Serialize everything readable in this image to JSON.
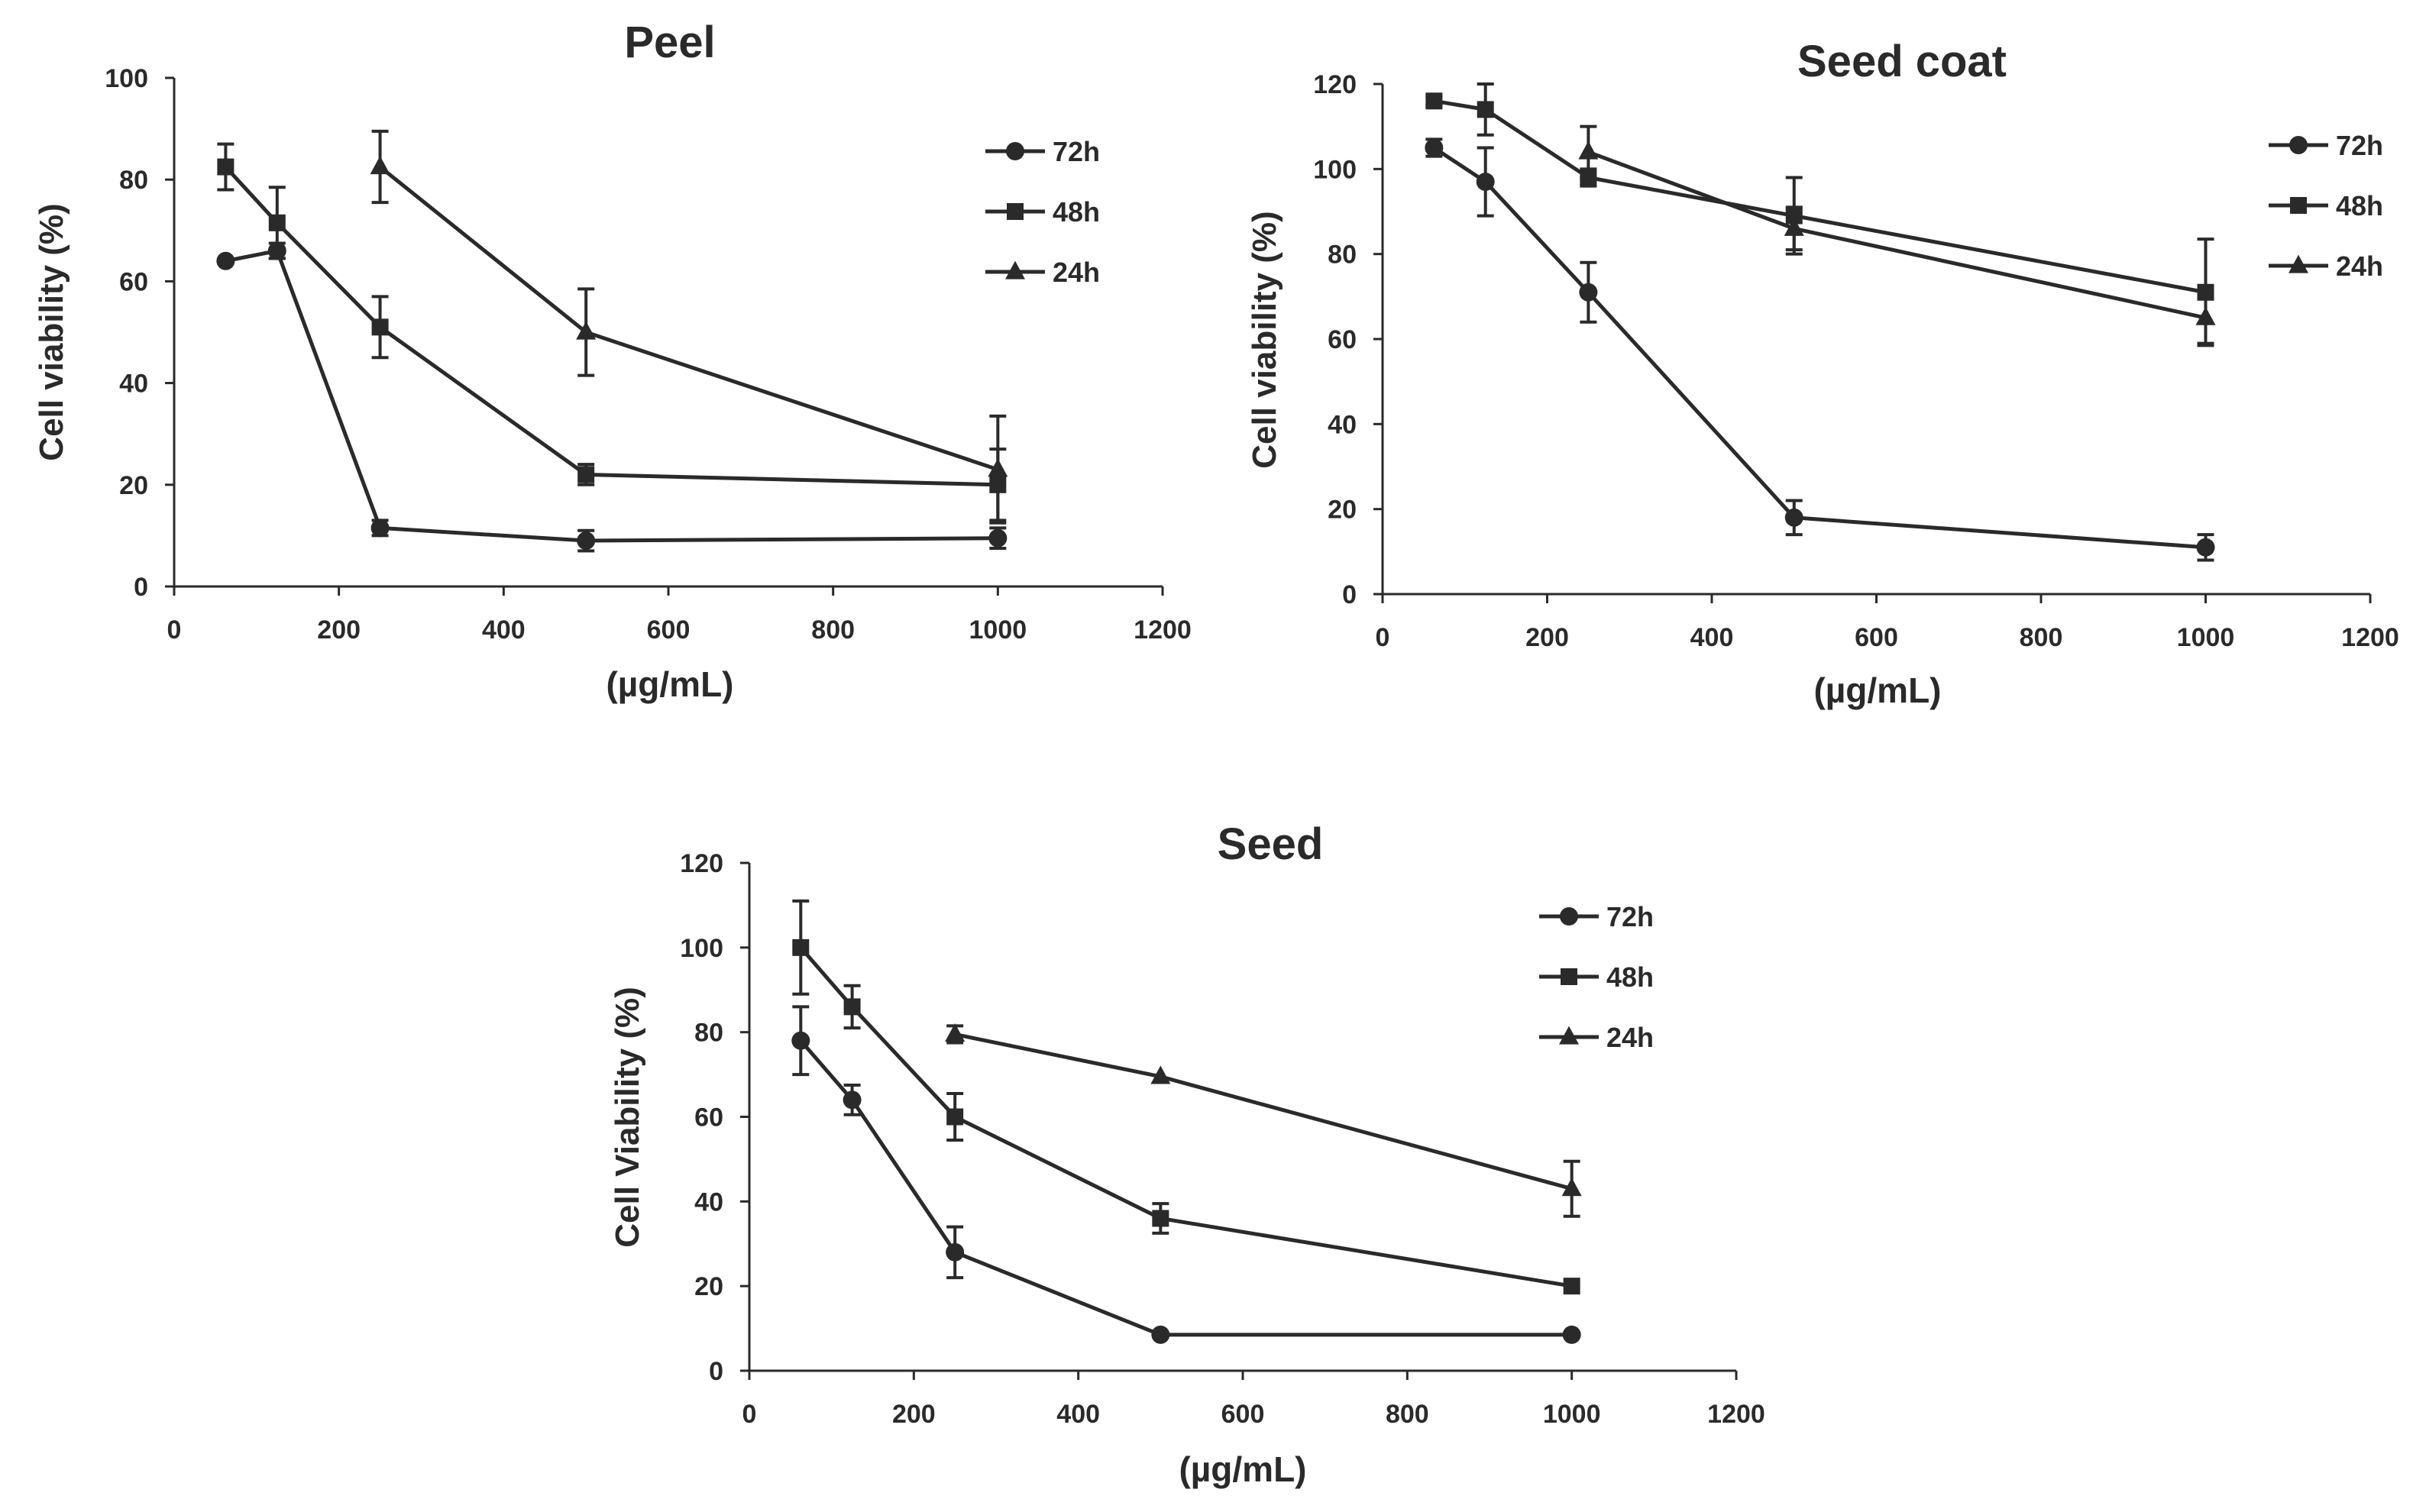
{
  "chart_data": [
    {
      "type": "line",
      "title": "Peel",
      "xlabel": "(µg/mL)",
      "ylabel": "Cell viability (%)",
      "xlim": [
        0,
        1200
      ],
      "ylim": [
        0,
        100
      ],
      "xticks": [
        "0",
        "200",
        "400",
        "600",
        "800",
        "1000",
        "1200"
      ],
      "yticks": [
        "0",
        "20",
        "40",
        "60",
        "80",
        "100"
      ],
      "legend": "top-right",
      "series": [
        {
          "name": "72h",
          "marker": "circle",
          "x": [
            62.5,
            125,
            250,
            500,
            1000
          ],
          "y": [
            64,
            66,
            11.5,
            9,
            9.5
          ],
          "err": [
            0,
            1.5,
            1.5,
            2,
            2
          ]
        },
        {
          "name": "48h",
          "marker": "square",
          "x": [
            62.5,
            125,
            250,
            500,
            1000
          ],
          "y": [
            82.5,
            71.5,
            51,
            22,
            20
          ],
          "err": [
            4.5,
            7,
            6,
            2,
            7
          ]
        },
        {
          "name": "24h",
          "marker": "triangle",
          "x": [
            250,
            500,
            1000
          ],
          "y": [
            82.5,
            50,
            23
          ],
          "err": [
            7,
            8.5,
            10.5
          ]
        }
      ]
    },
    {
      "type": "line",
      "title": "Seed coat",
      "xlabel": "(µg/mL)",
      "ylabel": "Cell viability (%)",
      "xlim": [
        0,
        1200
      ],
      "ylim": [
        0,
        120
      ],
      "xticks": [
        "0",
        "200",
        "400",
        "600",
        "800",
        "1000",
        "1200"
      ],
      "yticks": [
        "0",
        "20",
        "40",
        "60",
        "80",
        "100",
        "120"
      ],
      "legend": "top-right",
      "series": [
        {
          "name": "72h",
          "marker": "circle",
          "x": [
            62.5,
            125,
            250,
            500,
            1000
          ],
          "y": [
            105,
            97,
            71,
            18,
            11
          ],
          "err": [
            2,
            8,
            7,
            4,
            3
          ]
        },
        {
          "name": "48h",
          "marker": "square",
          "x": [
            62.5,
            125,
            250,
            500,
            1000
          ],
          "y": [
            116,
            114,
            98,
            89,
            71
          ],
          "err": [
            1,
            6,
            2,
            9,
            12.5
          ]
        },
        {
          "name": "24h",
          "marker": "triangle",
          "x": [
            250,
            500,
            1000
          ],
          "y": [
            104,
            86,
            65
          ],
          "err": [
            6,
            5,
            6
          ]
        }
      ]
    },
    {
      "type": "line",
      "title": "Seed",
      "xlabel": "(µg/mL)",
      "ylabel": "Cell Viability (%)",
      "xlim": [
        0,
        1200
      ],
      "ylim": [
        0,
        120
      ],
      "xticks": [
        "0",
        "200",
        "400",
        "600",
        "800",
        "1000",
        "1200"
      ],
      "yticks": [
        "0",
        "20",
        "40",
        "60",
        "80",
        "100",
        "120"
      ],
      "legend": "top-right",
      "series": [
        {
          "name": "72h",
          "marker": "circle",
          "x": [
            62.5,
            125,
            250,
            500,
            1000
          ],
          "y": [
            78,
            64,
            28,
            8.5,
            8.5
          ],
          "err": [
            8,
            3.5,
            6,
            0,
            0
          ]
        },
        {
          "name": "48h",
          "marker": "square",
          "x": [
            62.5,
            125,
            250,
            500,
            1000
          ],
          "y": [
            100,
            86,
            60,
            36,
            20
          ],
          "err": [
            11,
            5,
            5.5,
            3.5,
            0
          ]
        },
        {
          "name": "24h",
          "marker": "triangle",
          "x": [
            250,
            500,
            1000
          ],
          "y": [
            79.5,
            69.5,
            43
          ],
          "err": [
            2,
            0,
            6.5
          ]
        }
      ]
    }
  ],
  "colors": {
    "ink": "#2a2a2a",
    "background": "#ffffff"
  }
}
